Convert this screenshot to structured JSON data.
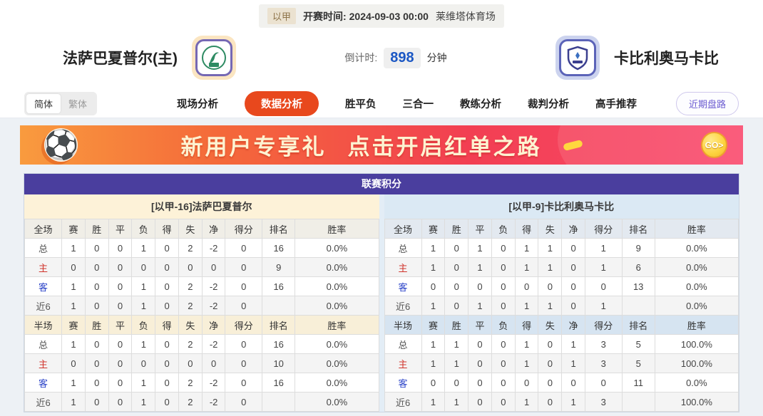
{
  "topbar": {
    "league": "以甲",
    "kickoff_label": "开赛时间:",
    "kickoff_time": "2024-09-03 00:00",
    "venue": "莱维塔体育场"
  },
  "header": {
    "home_team": "法萨巴夏普尔(主)",
    "away_team": "卡比利奥马卡比",
    "countdown_label": "倒计时:",
    "countdown_value": "898",
    "countdown_unit": "分钟"
  },
  "nav": {
    "lang_simplified": "简体",
    "lang_traditional": "繁体",
    "tabs": [
      "现场分析",
      "数据分析",
      "胜平负",
      "三合一",
      "教练分析",
      "裁判分析",
      "高手推荐"
    ],
    "active_tab": "数据分析",
    "recent_button": "近期盘路"
  },
  "banner": {
    "text1": "新用户专享礼",
    "text2": "点击开启红单之路",
    "go_label": "GO>"
  },
  "league_table": {
    "title": "联赛积分",
    "home_header": "[以甲-16]法萨巴夏普尔",
    "away_header": "[以甲-9]卡比利奥马卡比",
    "columns_full": [
      "全场",
      "赛",
      "胜",
      "平",
      "负",
      "得",
      "失",
      "净",
      "得分",
      "排名",
      "胜率"
    ],
    "columns_half": [
      "半场",
      "赛",
      "胜",
      "平",
      "负",
      "得",
      "失",
      "净",
      "得分",
      "排名",
      "胜率"
    ],
    "home_full": [
      [
        "总",
        "1",
        "0",
        "0",
        "1",
        "0",
        "2",
        "-2",
        "0",
        "16",
        "0.0%"
      ],
      [
        "主",
        "0",
        "0",
        "0",
        "0",
        "0",
        "0",
        "0",
        "0",
        "9",
        "0.0%"
      ],
      [
        "客",
        "1",
        "0",
        "0",
        "1",
        "0",
        "2",
        "-2",
        "0",
        "16",
        "0.0%"
      ],
      [
        "近6",
        "1",
        "0",
        "0",
        "1",
        "0",
        "2",
        "-2",
        "0",
        "",
        "0.0%"
      ]
    ],
    "home_half": [
      [
        "总",
        "1",
        "0",
        "0",
        "1",
        "0",
        "2",
        "-2",
        "0",
        "16",
        "0.0%"
      ],
      [
        "主",
        "0",
        "0",
        "0",
        "0",
        "0",
        "0",
        "0",
        "0",
        "10",
        "0.0%"
      ],
      [
        "客",
        "1",
        "0",
        "0",
        "1",
        "0",
        "2",
        "-2",
        "0",
        "16",
        "0.0%"
      ],
      [
        "近6",
        "1",
        "0",
        "0",
        "1",
        "0",
        "2",
        "-2",
        "0",
        "",
        "0.0%"
      ]
    ],
    "away_full": [
      [
        "总",
        "1",
        "0",
        "1",
        "0",
        "1",
        "1",
        "0",
        "1",
        "9",
        "0.0%"
      ],
      [
        "主",
        "1",
        "0",
        "1",
        "0",
        "1",
        "1",
        "0",
        "1",
        "6",
        "0.0%"
      ],
      [
        "客",
        "0",
        "0",
        "0",
        "0",
        "0",
        "0",
        "0",
        "0",
        "13",
        "0.0%"
      ],
      [
        "近6",
        "1",
        "0",
        "1",
        "0",
        "1",
        "1",
        "0",
        "1",
        "",
        "0.0%"
      ]
    ],
    "away_half": [
      [
        "总",
        "1",
        "1",
        "0",
        "0",
        "1",
        "0",
        "1",
        "3",
        "5",
        "100.0%"
      ],
      [
        "主",
        "1",
        "1",
        "0",
        "0",
        "1",
        "0",
        "1",
        "3",
        "5",
        "100.0%"
      ],
      [
        "客",
        "0",
        "0",
        "0",
        "0",
        "0",
        "0",
        "0",
        "0",
        "11",
        "0.0%"
      ],
      [
        "近6",
        "1",
        "1",
        "0",
        "0",
        "1",
        "0",
        "1",
        "3",
        "",
        "100.0%"
      ]
    ]
  },
  "colors": {
    "accent_purple": "#4a3e9e",
    "active_tab_orange": "#e8481d",
    "countdown_blue": "#1b57c4",
    "home_tint": "#fdf2d8",
    "away_tint": "#dbe9f4",
    "home_row_red": "#d0342c",
    "away_row_blue": "#2c44c8"
  }
}
